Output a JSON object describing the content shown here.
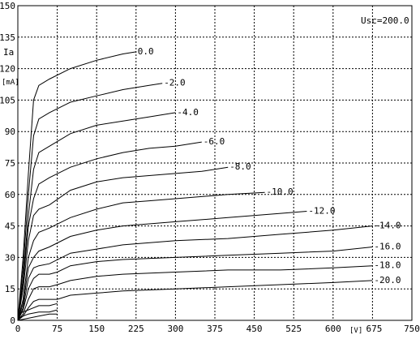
{
  "chart_data": {
    "type": "line",
    "title": "",
    "xlabel": "[V]",
    "ylabel": "Ia",
    "ylabel_unit": "[mA]",
    "annotation": "Usc=200.0",
    "xlim": [
      0,
      750
    ],
    "ylim": [
      0,
      150
    ],
    "x_ticks": [
      "0",
      "75",
      "150",
      "225",
      "300",
      "375",
      "450",
      "525",
      "600",
      "675",
      "750"
    ],
    "x_tick_values": [
      0,
      75,
      150,
      225,
      300,
      375,
      450,
      525,
      600,
      675,
      750
    ],
    "y_ticks": [
      "0",
      "15",
      "30",
      "45",
      "60",
      "75",
      "90",
      "105",
      "120",
      "135",
      "150"
    ],
    "y_tick_values": [
      0,
      15,
      30,
      45,
      60,
      75,
      90,
      105,
      120,
      135,
      150
    ],
    "grid": "dashed",
    "series": [
      {
        "name": "0.0",
        "x": [
          0,
          10,
          20,
          30,
          40,
          60,
          100,
          150,
          200,
          225
        ],
        "y": [
          0,
          30,
          70,
          105,
          112,
          115,
          120,
          124,
          127,
          128
        ]
      },
      {
        "name": "-2.0",
        "x": [
          0,
          10,
          20,
          30,
          40,
          60,
          100,
          150,
          200,
          250,
          275
        ],
        "y": [
          0,
          25,
          60,
          88,
          96,
          99,
          104,
          107,
          110,
          112,
          113
        ]
      },
      {
        "name": "-4.0",
        "x": [
          0,
          10,
          20,
          30,
          40,
          60,
          100,
          150,
          200,
          250,
          300
        ],
        "y": [
          0,
          20,
          50,
          72,
          80,
          83,
          89,
          93,
          95,
          97,
          99
        ]
      },
      {
        "name": "-6.0",
        "x": [
          0,
          10,
          20,
          30,
          40,
          60,
          100,
          150,
          200,
          250,
          300,
          350
        ],
        "y": [
          0,
          18,
          45,
          58,
          65,
          68,
          73,
          77,
          80,
          82,
          83,
          85
        ]
      },
      {
        "name": "-8.0",
        "x": [
          0,
          10,
          20,
          30,
          40,
          60,
          100,
          150,
          200,
          250,
          300,
          350,
          400
        ],
        "y": [
          0,
          15,
          38,
          50,
          53,
          55,
          62,
          66,
          68,
          69,
          70,
          71,
          73
        ]
      },
      {
        "name": "-10.0",
        "x": [
          0,
          10,
          20,
          30,
          40,
          60,
          100,
          150,
          200,
          250,
          300,
          350,
          400,
          470
        ],
        "y": [
          0,
          10,
          30,
          38,
          42,
          44,
          49,
          53,
          56,
          57,
          58,
          59,
          60,
          61
        ]
      },
      {
        "name": "-12.0",
        "x": [
          0,
          10,
          20,
          30,
          40,
          60,
          100,
          150,
          200,
          300,
          400,
          500,
          550
        ],
        "y": [
          0,
          8,
          25,
          30,
          33,
          35,
          40,
          43,
          45,
          47,
          49,
          51,
          52
        ]
      },
      {
        "name": "-14.0",
        "x": [
          0,
          10,
          20,
          30,
          40,
          60,
          100,
          150,
          200,
          300,
          400,
          500,
          600,
          675
        ],
        "y": [
          0,
          6,
          20,
          25,
          26,
          27,
          32,
          34,
          36,
          38,
          39,
          41,
          43,
          45
        ]
      },
      {
        "name": "-16.0",
        "x": [
          0,
          10,
          20,
          30,
          40,
          60,
          75,
          100,
          150,
          200,
          300,
          400,
          500,
          600,
          675
        ],
        "y": [
          0,
          5,
          15,
          20,
          22,
          22,
          23,
          26,
          28,
          29,
          30,
          31,
          32,
          33,
          35
        ]
      },
      {
        "name": "-18.0",
        "x": [
          0,
          10,
          20,
          30,
          40,
          60,
          75,
          100,
          150,
          200,
          300,
          400,
          500,
          600,
          675
        ],
        "y": [
          0,
          3,
          10,
          15,
          16,
          16,
          17,
          19,
          21,
          22,
          23,
          24,
          24,
          25,
          26
        ]
      },
      {
        "name": "-20.0",
        "x": [
          0,
          10,
          20,
          30,
          40,
          60,
          75,
          100,
          150,
          200,
          300,
          400,
          500,
          600,
          675
        ],
        "y": [
          0,
          2,
          6,
          9,
          10,
          10,
          10,
          12,
          13,
          14,
          15,
          16,
          17,
          18,
          19
        ]
      }
    ],
    "baseline_curves": [
      {
        "x": [
          0,
          20,
          40,
          60,
          75
        ],
        "y": [
          3,
          5,
          7,
          7,
          8
        ]
      },
      {
        "x": [
          0,
          20,
          40,
          60,
          75
        ],
        "y": [
          1,
          3,
          4,
          4,
          5
        ]
      },
      {
        "x": [
          0,
          20,
          40,
          60,
          75
        ],
        "y": [
          0,
          1,
          2,
          3,
          3
        ]
      }
    ]
  }
}
